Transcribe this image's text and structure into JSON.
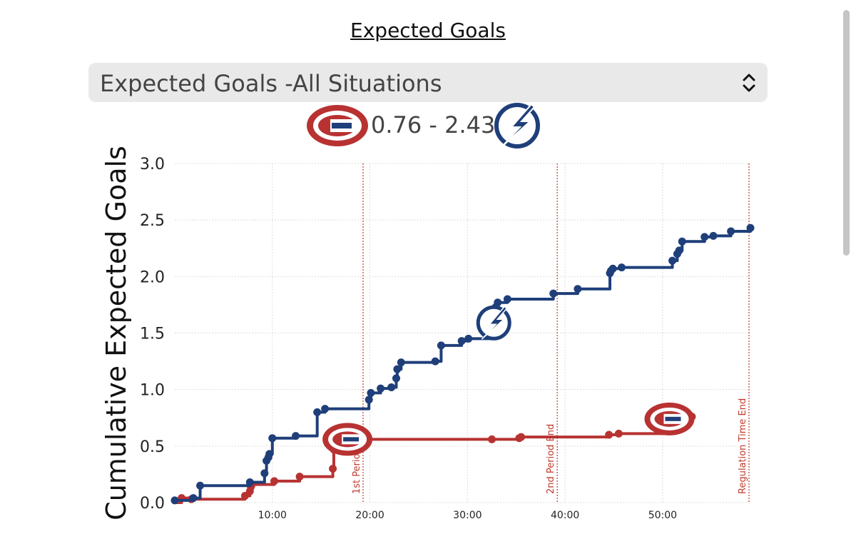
{
  "page_title": "Expected Goals",
  "selector": {
    "value": "Expected Goals -All Situations"
  },
  "header": {
    "home_xg": "0.76",
    "separator": "-",
    "away_xg": "2.43",
    "home_logo_icon": "canadiens-logo-icon",
    "away_logo_icon": "lightning-logo-icon"
  },
  "colors": {
    "home": "#b83232",
    "away": "#1f3f7a",
    "period_line": "#c0392b",
    "grid": "#dddddd"
  },
  "chart_data": {
    "type": "line",
    "step": true,
    "ylabel": "Cumulative Expected Goals",
    "xlabel": "",
    "xlim": [
      0,
      59
    ],
    "ylim": [
      0,
      3.0
    ],
    "yticks": [
      0.0,
      0.5,
      1.0,
      1.5,
      2.0,
      2.5,
      3.0
    ],
    "xticks": [
      10,
      20,
      30,
      40,
      50
    ],
    "xtick_labels": [
      "10:00",
      "20:00",
      "30:00",
      "40:00",
      "50:00"
    ],
    "grid": true,
    "period_markers": [
      {
        "x": 19.3,
        "label": "1st Period End"
      },
      {
        "x": 39.2,
        "label": "2nd Period End"
      },
      {
        "x": 59,
        "label": "Regulation Time End"
      }
    ],
    "series": [
      {
        "name": "Montreal Canadiens",
        "team": "home",
        "final": 0.76,
        "logo_at": {
          "x": 50.7,
          "y": 0.74
        },
        "x": [
          0,
          0.7,
          1.7,
          7.2,
          7.7,
          7.8,
          7.9,
          10.2,
          12.8,
          16.2,
          16.3,
          16.5,
          16.7,
          18.2,
          32.5,
          35.3,
          35.5,
          44.5,
          45.5,
          51.2,
          52.2,
          53.0
        ],
        "y": [
          0,
          0.04,
          0.03,
          0.06,
          0.1,
          0.14,
          0.16,
          0.19,
          0.23,
          0.3,
          0.47,
          0.49,
          0.51,
          0.56,
          0.56,
          0.57,
          0.58,
          0.6,
          0.61,
          0.7,
          0.74,
          0.76
        ]
      },
      {
        "name": "Tampa Bay Lightning",
        "team": "away",
        "final": 2.43,
        "logo_at": {
          "x": 32.7,
          "y": 1.59
        },
        "x": [
          0,
          1.9,
          2.6,
          7.7,
          9.2,
          9.4,
          9.6,
          9.7,
          10.0,
          12.4,
          14.6,
          15.4,
          19.9,
          20.1,
          21.1,
          22.2,
          22.7,
          22.8,
          23.2,
          26.7,
          27.3,
          29.4,
          30.1,
          32.4,
          32.6,
          32.8,
          32.9,
          33.1,
          34.1,
          38.8,
          41.3,
          44.6,
          44.7,
          44.9,
          45.8,
          51.0,
          51.5,
          51.7,
          52.0,
          54.3,
          55.2,
          57.0,
          59.0
        ],
        "y": [
          0.02,
          0.04,
          0.15,
          0.18,
          0.26,
          0.37,
          0.4,
          0.43,
          0.57,
          0.59,
          0.8,
          0.83,
          0.91,
          0.97,
          1.01,
          1.02,
          1.1,
          1.18,
          1.24,
          1.25,
          1.39,
          1.43,
          1.45,
          1.57,
          1.63,
          1.69,
          1.73,
          1.77,
          1.8,
          1.85,
          1.89,
          2.03,
          2.05,
          2.07,
          2.08,
          2.14,
          2.2,
          2.23,
          2.31,
          2.35,
          2.36,
          2.4,
          2.43
        ]
      }
    ]
  }
}
